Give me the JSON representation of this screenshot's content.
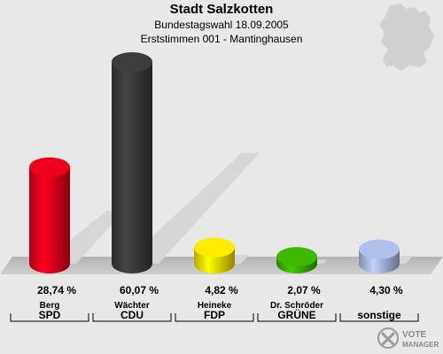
{
  "title": "Stadt Salzkotten",
  "subtitle": "Bundestagswahl 18.09.2005",
  "subtitle2": "Erststimmen 001 - Mantinghausen",
  "logo": {
    "line1": "VOTE",
    "line2": "MANAGER"
  },
  "chart_data": {
    "type": "bar",
    "title": "Stadt Salzkotten",
    "categories": [
      "SPD",
      "CDU",
      "FDP",
      "GRÜNE",
      "sonstige"
    ],
    "candidates": [
      "Berg",
      "Wächter",
      "Heineke",
      "Dr. Schröder",
      ""
    ],
    "values": [
      28.74,
      60.07,
      4.82,
      2.07,
      4.3
    ],
    "value_labels": [
      "28,74 %",
      "60,07 %",
      "4,82 %",
      "2,07 %",
      "4,30 %"
    ],
    "colors": [
      "#e2001a",
      "#3a3a3a",
      "#f5e000",
      "#3cb000",
      "#a8b8e0"
    ],
    "ylim": [
      0,
      60.07
    ]
  }
}
